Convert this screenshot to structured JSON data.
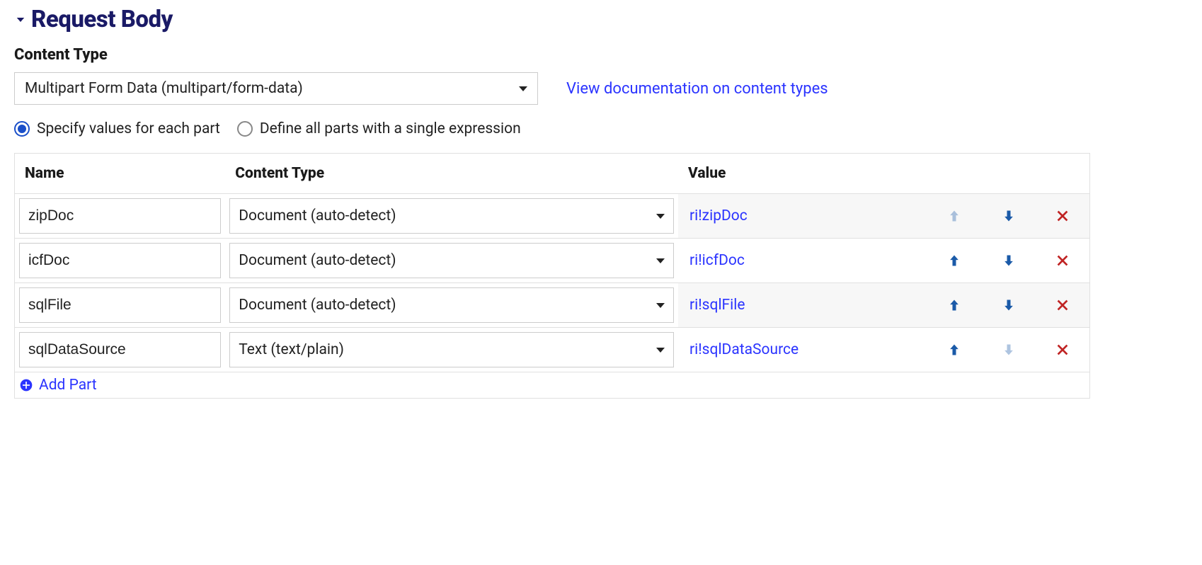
{
  "section": {
    "title": "Request Body"
  },
  "contentType": {
    "label": "Content Type",
    "value": "Multipart Form Data (multipart/form-data)",
    "docLink": "View documentation on content types"
  },
  "radio": {
    "option1": "Specify values for each part",
    "option2": "Define all parts with a single expression",
    "selected": 1
  },
  "table": {
    "headers": {
      "name": "Name",
      "contentType": "Content Type",
      "value": "Value"
    },
    "rows": [
      {
        "name": "zipDoc",
        "contentType": "Document (auto-detect)",
        "value": "ri!zipDoc",
        "upEnabled": false,
        "downEnabled": true
      },
      {
        "name": "icfDoc",
        "contentType": "Document (auto-detect)",
        "value": "ri!icfDoc",
        "upEnabled": true,
        "downEnabled": true
      },
      {
        "name": "sqlFile",
        "contentType": "Document (auto-detect)",
        "value": "ri!sqlFile",
        "upEnabled": true,
        "downEnabled": true
      },
      {
        "name": "sqlDataSource",
        "contentType": "Text (text/plain)",
        "value": "ri!sqlDataSource",
        "upEnabled": true,
        "downEnabled": false
      }
    ],
    "addPart": "Add Part"
  },
  "colors": {
    "titleColor": "#1a1a66",
    "linkColor": "#2b34ff",
    "arrowColor": "#1a5aa8",
    "deleteColor": "#c02424",
    "border": "#e0e0e0",
    "shaded": "#f7f7f7"
  }
}
